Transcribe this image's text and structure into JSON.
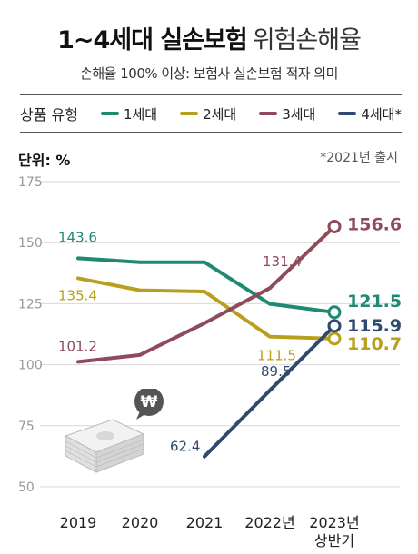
{
  "title": {
    "bold": "1~4세대 실손보험",
    "light": "위험손해율"
  },
  "subtitle": "손해율 100% 이상: 보험사 실손보험 적자 의미",
  "legend": {
    "title": "상품 유형",
    "items": [
      "1세대",
      "2세대",
      "3세대",
      "4세대*"
    ]
  },
  "unit_label": "단위: %",
  "footnote": "*2021년 출시",
  "colors": {
    "gen1": "#1f8a73",
    "gen2": "#b8a01e",
    "gen3": "#8f4a5b",
    "gen4": "#2f4a6e",
    "grid": "#d9d9d9",
    "axis_text": "#999999"
  },
  "icons": {
    "money": "won-coin-and-banknote-stack-icon"
  },
  "chart_data": {
    "type": "line",
    "categories": [
      "2019",
      "2020",
      "2021",
      "2022년",
      "2023년\n상반기"
    ],
    "ylim": [
      50,
      175
    ],
    "yticks": [
      50,
      75,
      100,
      125,
      150,
      175
    ],
    "grid": true,
    "series": [
      {
        "name": "1세대",
        "color": "#1f8a73",
        "values": [
          143.6,
          142,
          142,
          124.9,
          121.5
        ],
        "labels": [
          "143.6",
          "",
          "",
          "",
          "121.5"
        ]
      },
      {
        "name": "2세대",
        "color": "#b8a01e",
        "values": [
          135.4,
          130.5,
          130,
          111.5,
          110.7
        ],
        "labels": [
          "135.4",
          "",
          "",
          "111.5",
          "110.7"
        ]
      },
      {
        "name": "3세대",
        "color": "#8f4a5b",
        "values": [
          101.2,
          104,
          117,
          131.4,
          156.6
        ],
        "labels": [
          "101.2",
          "",
          "",
          "131.4",
          "156.6"
        ]
      },
      {
        "name": "4세대*",
        "color": "#2f4a6e",
        "values": [
          null,
          null,
          62.4,
          89.5,
          115.9
        ],
        "labels": [
          "",
          "",
          "62.4",
          "89.5",
          "115.9"
        ]
      }
    ]
  }
}
